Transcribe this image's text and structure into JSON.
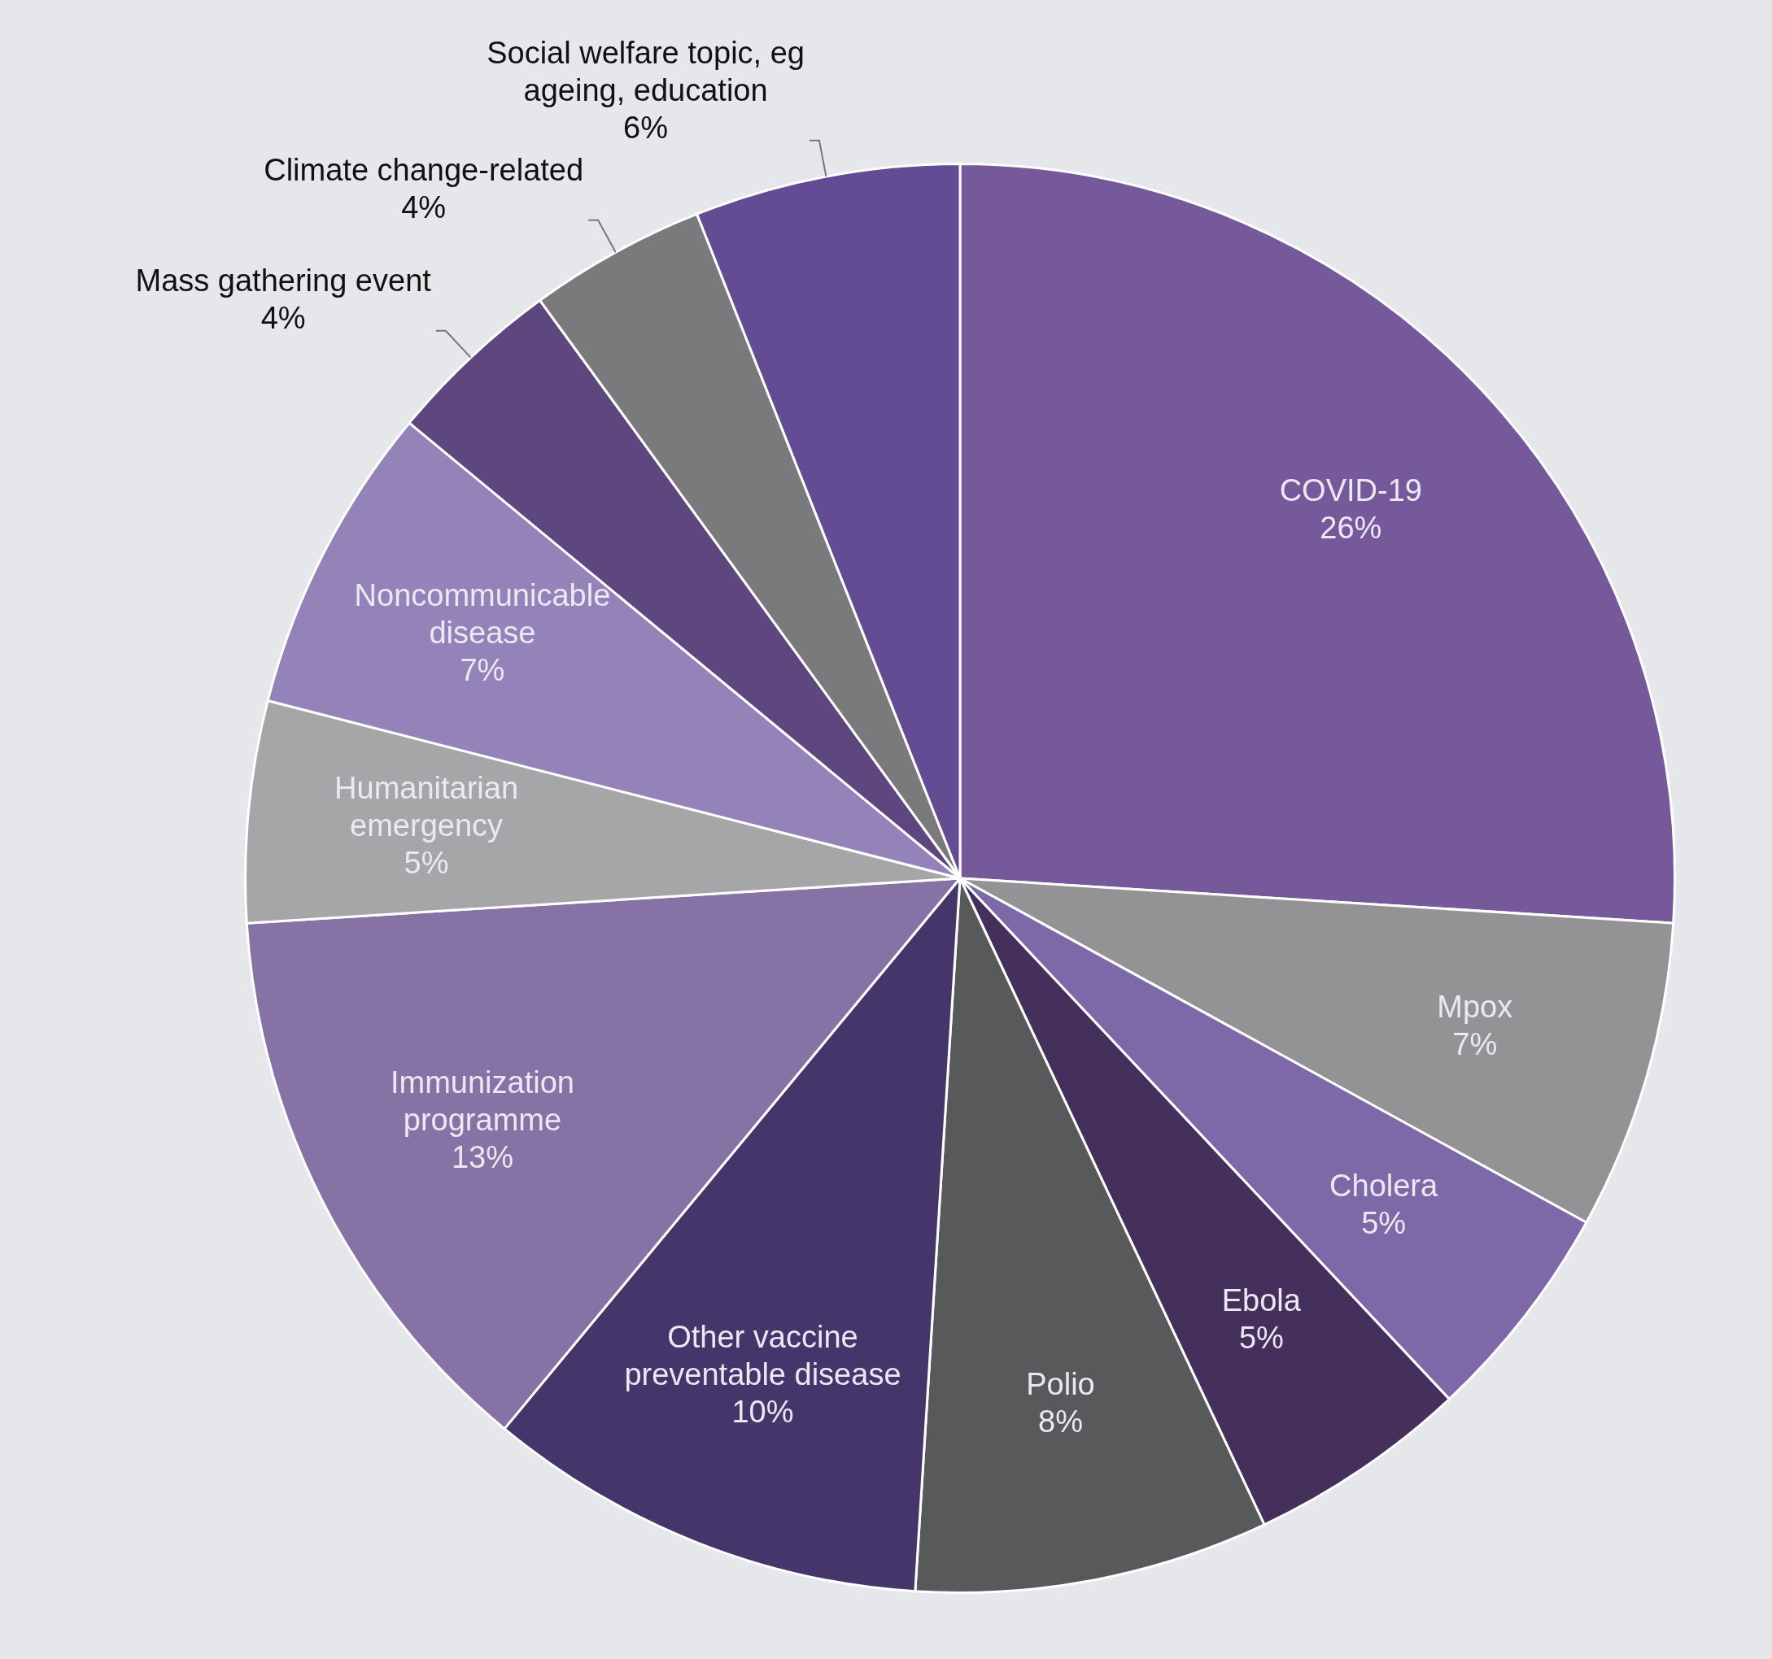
{
  "chart_data": {
    "type": "pie",
    "categories": [
      "COVID-19",
      "Mpox",
      "Cholera",
      "Ebola",
      "Polio",
      "Other vaccine preventable disease",
      "Immunization programme",
      "Humanitarian emergency",
      "Noncommunicable disease",
      "Mass gathering event",
      "Climate change-related",
      "Social welfare topic, eg ageing, education"
    ],
    "values": [
      26,
      7,
      5,
      5,
      8,
      10,
      13,
      5,
      7,
      4,
      4,
      6
    ],
    "colors": [
      "#76599a",
      "#939396",
      "#7d69a8",
      "#44305a",
      "#58595b",
      "#44366a",
      "#8772a5",
      "#a6a6a9",
      "#9483b8",
      "#5e467e",
      "#7a7a7d",
      "#634c94"
    ],
    "value_labels": [
      "26%",
      "7%",
      "5%",
      "5%",
      "8%",
      "10%",
      "13%",
      "5%",
      "7%",
      "4%",
      "4%",
      "6%"
    ],
    "legend": false
  }
}
